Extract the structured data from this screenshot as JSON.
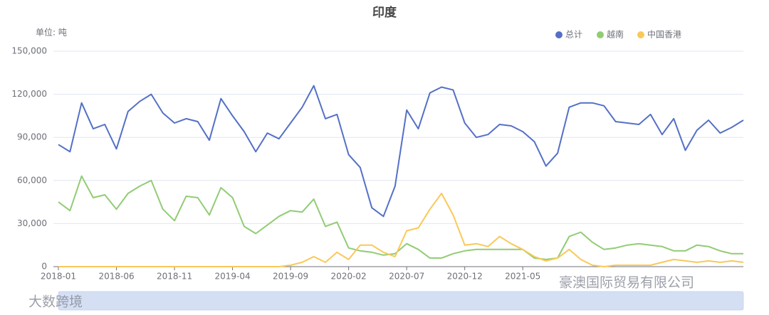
{
  "chart_data": {
    "type": "line",
    "title": "印度",
    "y_unit_label": "单位: 吨",
    "categories": [
      "2018-01",
      null,
      null,
      null,
      null,
      "2018-06",
      null,
      null,
      null,
      null,
      "2018-11",
      null,
      null,
      null,
      null,
      "2019-04",
      null,
      null,
      null,
      null,
      "2019-09",
      null,
      null,
      null,
      null,
      "2020-02",
      null,
      null,
      null,
      null,
      "2020-07",
      null,
      null,
      null,
      null,
      "2020-12",
      null,
      null,
      null,
      null,
      "2021-05",
      null,
      null,
      null,
      null,
      null,
      null,
      null,
      null,
      null,
      null,
      null,
      null,
      null,
      null,
      null,
      null,
      null,
      null,
      null
    ],
    "series": [
      {
        "name": "总计",
        "color": "#5470c6",
        "values": [
          85000,
          80000,
          114000,
          96000,
          99000,
          82000,
          108000,
          115000,
          120000,
          107000,
          100000,
          103000,
          101000,
          88000,
          117000,
          105000,
          94000,
          80000,
          93000,
          89000,
          100000,
          111000,
          126000,
          103000,
          106000,
          78000,
          69000,
          41000,
          35000,
          56000,
          109000,
          96000,
          121000,
          125000,
          123000,
          100000,
          90000,
          92000,
          99000,
          98000,
          94000,
          87000,
          70000,
          79000,
          111000,
          114000,
          114000,
          112000,
          101000,
          100000,
          99000,
          106000,
          92000,
          103000,
          81000,
          95000,
          102000,
          93000,
          97000,
          102000
        ]
      },
      {
        "name": "越南",
        "color": "#91cc75",
        "values": [
          45000,
          39000,
          63000,
          48000,
          50000,
          40000,
          51000,
          56000,
          60000,
          40000,
          32000,
          49000,
          48000,
          36000,
          55000,
          48000,
          28000,
          23000,
          29000,
          35000,
          39000,
          38000,
          47000,
          28000,
          31000,
          13000,
          11000,
          10000,
          8000,
          9000,
          16000,
          12000,
          6000,
          6000,
          9000,
          11000,
          12000,
          12000,
          12000,
          12000,
          12000,
          6000,
          5000,
          6000,
          21000,
          24000,
          17000,
          12000,
          13000,
          15000,
          16000,
          15000,
          14000,
          11000,
          11000,
          15000,
          14000,
          11000,
          9000,
          9000
        ]
      },
      {
        "name": "中国香港",
        "color": "#fac858",
        "values": [
          0,
          0,
          0,
          0,
          0,
          0,
          0,
          0,
          0,
          0,
          0,
          0,
          0,
          0,
          0,
          0,
          0,
          0,
          0,
          0,
          1000,
          3000,
          7000,
          3000,
          10000,
          5000,
          15000,
          15000,
          10000,
          7000,
          25000,
          27000,
          40000,
          51000,
          36000,
          15000,
          16000,
          14000,
          21000,
          16000,
          12000,
          7000,
          4000,
          6000,
          12000,
          5000,
          1000,
          0,
          1000,
          1000,
          1000,
          1000,
          3000,
          5000,
          4000,
          3000,
          4000,
          3000,
          4000,
          3000
        ]
      }
    ],
    "ylim": [
      0,
      150000
    ],
    "yticks": [
      0,
      {
        "value": 30000,
        "label": "30,000"
      },
      {
        "value": 60000,
        "label": "60,000"
      },
      {
        "value": 90000,
        "label": "90,000"
      },
      {
        "value": 120000,
        "label": "120,000"
      },
      {
        "value": 150000,
        "label": "150,000"
      }
    ],
    "grid": true,
    "legend_position": "top-right",
    "watermarks": [
      "大数跨境",
      "豪澳国际贸易有限公司"
    ]
  }
}
